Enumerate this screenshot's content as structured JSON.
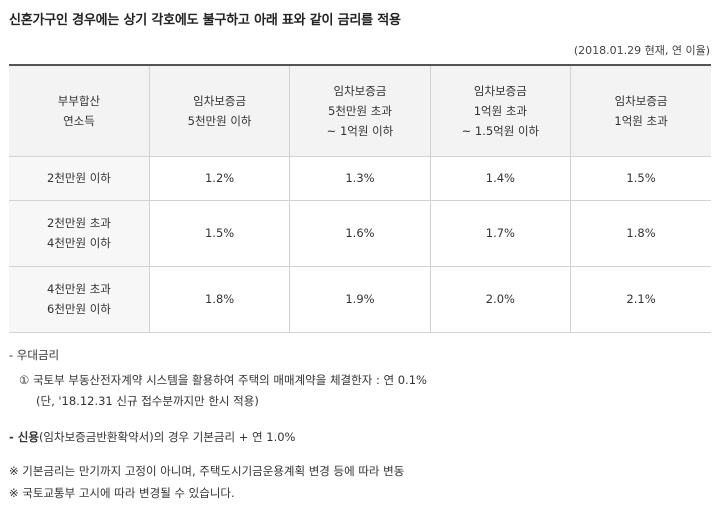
{
  "intro": "신혼가구인 경우에는 상기 각호에도 불구하고 아래 표와 같이 금리를 적용",
  "basis_note": "(2018.01.29 현재, 연 이율)",
  "table": {
    "corner_header": [
      "부부합산",
      "연소득"
    ],
    "column_headers": [
      [
        "임차보증금",
        "5천만원 이하"
      ],
      [
        "임차보증금",
        "5천만원 초과",
        "~ 1억원 이하"
      ],
      [
        "임차보증금",
        "1억원 초과",
        "~ 1.5억원 이하"
      ],
      [
        "임차보증금",
        "1억원 초과"
      ]
    ],
    "rows": [
      {
        "label": [
          "2천만원 이하"
        ],
        "values": [
          "1.2%",
          "1.3%",
          "1.4%",
          "1.5%"
        ]
      },
      {
        "label": [
          "2천만원 초과",
          "4천만원 이하"
        ],
        "values": [
          "1.5%",
          "1.6%",
          "1.7%",
          "1.8%"
        ]
      },
      {
        "label": [
          "4천만원 초과",
          "6천만원 이하"
        ],
        "values": [
          "1.8%",
          "1.9%",
          "2.0%",
          "2.1%"
        ]
      }
    ]
  },
  "notes": {
    "preferential_title": "- 우대금리",
    "preferential_item": "① 국토부 부동산전자계약 시스템을 활용하여 주택의 매매계약을 체결한자 : 연 0.1%",
    "preferential_sub": "(단, '18.12.31 신규 접수분까지만 한시 적용)",
    "credit_prefix": "- 신용",
    "credit_rest": "(임차보증금반환확약서)의 경우 기본금리 + 연 1.0%",
    "remark1": "※ 기본금리는 만기까지 고정이 아니며, 주택도시기금운용계획 변경 등에 따라 변동",
    "remark2": "※ 국토교통부 고시에 따라 변경될 수 있습니다."
  }
}
